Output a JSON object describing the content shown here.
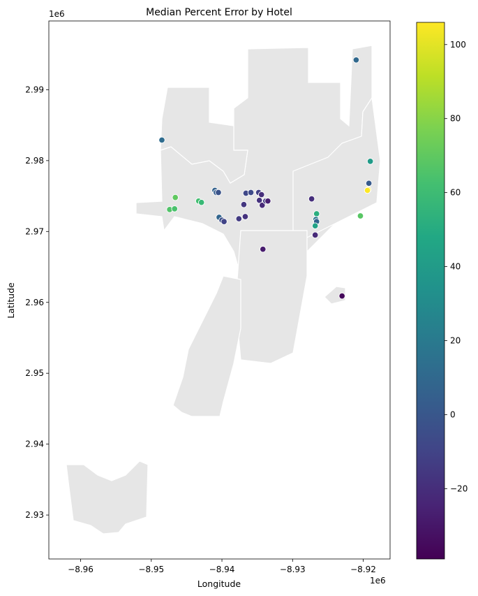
{
  "chart_data": {
    "type": "scatter",
    "title": "Median Percent Error by Hotel",
    "xlabel": "Longitude",
    "ylabel": "Latitude",
    "x_offset_label": "1e6",
    "y_offset_label": "1e6",
    "xlim": [
      -8.9645,
      -8.9162
    ],
    "ylim": [
      2.9238,
      2.9997
    ],
    "xticks": [
      -8.96,
      -8.95,
      -8.94,
      -8.93,
      -8.92
    ],
    "xtick_labels": [
      "−8.96",
      "−8.95",
      "−8.94",
      "−8.93",
      "−8.92"
    ],
    "yticks": [
      2.93,
      2.94,
      2.95,
      2.96,
      2.97,
      2.98,
      2.99
    ],
    "ytick_labels": [
      "2.93",
      "2.94",
      "2.95",
      "2.96",
      "2.97",
      "2.98",
      "2.99"
    ],
    "grid": false,
    "basemap_color": "#e6e6e6",
    "colormap": "viridis",
    "colorbar": {
      "range": [
        -39,
        106
      ],
      "ticks": [
        -20,
        0,
        20,
        40,
        60,
        80,
        100
      ],
      "tick_labels": [
        "−20",
        "0",
        "20",
        "40",
        "60",
        "80",
        "100"
      ]
    },
    "points": [
      {
        "x": -8.921,
        "y": 2.9942,
        "value": 10
      },
      {
        "x": -8.9485,
        "y": 2.9829,
        "value": 12
      },
      {
        "x": -8.919,
        "y": 2.9799,
        "value": 40
      },
      {
        "x": -8.9192,
        "y": 2.9768,
        "value": 2
      },
      {
        "x": -8.9193,
        "y": 2.9759,
        "value": 104
      },
      {
        "x": -8.9194,
        "y": 2.9758,
        "value": 106
      },
      {
        "x": -8.9204,
        "y": 2.9722,
        "value": 68
      },
      {
        "x": -8.9466,
        "y": 2.9748,
        "value": 70
      },
      {
        "x": -8.9433,
        "y": 2.9743,
        "value": 62
      },
      {
        "x": -8.9429,
        "y": 2.9741,
        "value": 58
      },
      {
        "x": -8.9474,
        "y": 2.9731,
        "value": 66
      },
      {
        "x": -8.9467,
        "y": 2.9732,
        "value": 64
      },
      {
        "x": -8.941,
        "y": 2.9758,
        "value": 6
      },
      {
        "x": -8.9408,
        "y": 2.9755,
        "value": 4
      },
      {
        "x": -8.9405,
        "y": 2.9755,
        "value": -2
      },
      {
        "x": -8.9404,
        "y": 2.972,
        "value": 8
      },
      {
        "x": -8.94,
        "y": 2.9716,
        "value": -4
      },
      {
        "x": -8.9397,
        "y": 2.9714,
        "value": -10
      },
      {
        "x": -8.9376,
        "y": 2.9718,
        "value": -14
      },
      {
        "x": -8.9367,
        "y": 2.9721,
        "value": -18
      },
      {
        "x": -8.9369,
        "y": 2.9738,
        "value": -16
      },
      {
        "x": -8.9366,
        "y": 2.9754,
        "value": -8
      },
      {
        "x": -8.9359,
        "y": 2.9755,
        "value": -6
      },
      {
        "x": -8.9348,
        "y": 2.9755,
        "value": -12
      },
      {
        "x": -8.9344,
        "y": 2.9752,
        "value": -20
      },
      {
        "x": -8.9347,
        "y": 2.9744,
        "value": -18
      },
      {
        "x": -8.9343,
        "y": 2.9737,
        "value": -22
      },
      {
        "x": -8.9338,
        "y": 2.9743,
        "value": -14
      },
      {
        "x": -8.9335,
        "y": 2.9743,
        "value": -26
      },
      {
        "x": -8.9342,
        "y": 2.9675,
        "value": -28
      },
      {
        "x": -8.9273,
        "y": 2.9746,
        "value": -20
      },
      {
        "x": -8.9266,
        "y": 2.9725,
        "value": 52
      },
      {
        "x": -8.9267,
        "y": 2.9717,
        "value": 18
      },
      {
        "x": -8.9266,
        "y": 2.9714,
        "value": 6
      },
      {
        "x": -8.9268,
        "y": 2.9708,
        "value": 44
      },
      {
        "x": -8.9268,
        "y": 2.9695,
        "value": -22
      },
      {
        "x": -8.923,
        "y": 2.9609,
        "value": -36
      }
    ]
  }
}
